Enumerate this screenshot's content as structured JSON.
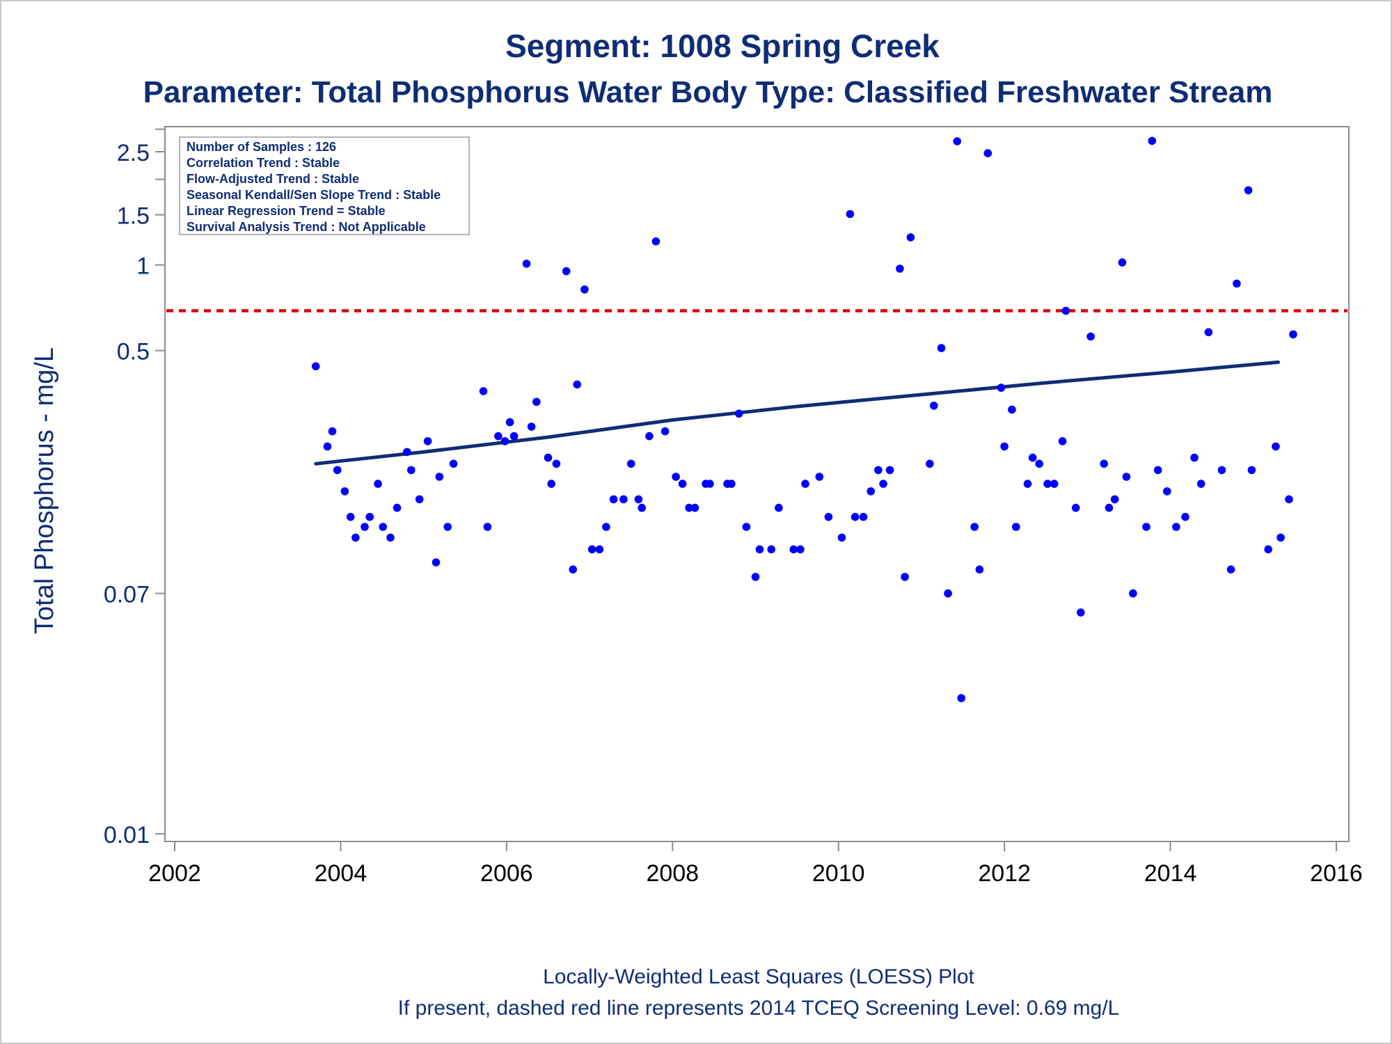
{
  "chart_data": {
    "type": "scatter",
    "title": "Segment: 1008  Spring Creek",
    "subtitle": "Parameter: Total Phosphorus   Water Body Type: Classified Freshwater Stream",
    "xlabel": "",
    "ylabel": "Total Phosphorus - mg/L",
    "yscale": "log",
    "xlim": [
      2002,
      2016
    ],
    "ylim": [
      0.01,
      3
    ],
    "x_ticks": [
      2002,
      2004,
      2006,
      2008,
      2010,
      2012,
      2014,
      2016
    ],
    "y_ticks": [
      {
        "value": 0.01,
        "label": "0.01"
      },
      {
        "value": 0.07,
        "label": "0.07"
      },
      {
        "value": 0.5,
        "label": "0.5"
      },
      {
        "value": 1,
        "label": "1"
      },
      {
        "value": 1.5,
        "label": "1.5"
      },
      {
        "value": 2.5,
        "label": "2.5"
      }
    ],
    "y_minor_ticks": [
      2,
      3
    ],
    "grid": false,
    "legend_box": {
      "position": "top-left",
      "lines": [
        "Number of Samples : 126",
        "Correlation Trend : Stable",
        "Flow-Adjusted Trend : Stable",
        "Seasonal Kendall/Sen Slope Trend : Stable",
        "Linear Regression Trend = Stable",
        "Survival Analysis Trend : Not Applicable"
      ]
    },
    "reference_line": {
      "value": 0.69,
      "style": "dashed",
      "color": "#dd0000"
    },
    "loess_curve": {
      "color": "#0f2d74",
      "points": [
        {
          "x": 2003.7,
          "y": 0.2
        },
        {
          "x": 2005.0,
          "y": 0.22
        },
        {
          "x": 2006.5,
          "y": 0.248
        },
        {
          "x": 2008.0,
          "y": 0.285
        },
        {
          "x": 2009.5,
          "y": 0.318
        },
        {
          "x": 2011.0,
          "y": 0.35
        },
        {
          "x": 2012.5,
          "y": 0.385
        },
        {
          "x": 2014.0,
          "y": 0.42
        },
        {
          "x": 2015.3,
          "y": 0.455
        }
      ]
    },
    "series": [
      {
        "color": "#0000ff",
        "points": [
          {
            "x": 2003.7,
            "y": 0.44
          },
          {
            "x": 2003.84,
            "y": 0.23
          },
          {
            "x": 2003.9,
            "y": 0.26
          },
          {
            "x": 2003.96,
            "y": 0.19
          },
          {
            "x": 2004.05,
            "y": 0.16
          },
          {
            "x": 2004.12,
            "y": 0.13
          },
          {
            "x": 2004.18,
            "y": 0.11
          },
          {
            "x": 2004.29,
            "y": 0.12
          },
          {
            "x": 2004.35,
            "y": 0.13
          },
          {
            "x": 2004.45,
            "y": 0.17
          },
          {
            "x": 2004.51,
            "y": 0.12
          },
          {
            "x": 2004.6,
            "y": 0.11
          },
          {
            "x": 2004.68,
            "y": 0.14
          },
          {
            "x": 2004.8,
            "y": 0.22
          },
          {
            "x": 2004.85,
            "y": 0.19
          },
          {
            "x": 2004.95,
            "y": 0.15
          },
          {
            "x": 2005.05,
            "y": 0.24
          },
          {
            "x": 2005.15,
            "y": 0.09
          },
          {
            "x": 2005.19,
            "y": 0.18
          },
          {
            "x": 2005.29,
            "y": 0.12
          },
          {
            "x": 2005.36,
            "y": 0.2
          },
          {
            "x": 2005.72,
            "y": 0.36
          },
          {
            "x": 2005.77,
            "y": 0.12
          },
          {
            "x": 2005.9,
            "y": 0.25
          },
          {
            "x": 2005.98,
            "y": 0.24
          },
          {
            "x": 2006.04,
            "y": 0.28
          },
          {
            "x": 2006.09,
            "y": 0.25
          },
          {
            "x": 2006.24,
            "y": 1.01
          },
          {
            "x": 2006.3,
            "y": 0.27
          },
          {
            "x": 2006.36,
            "y": 0.33
          },
          {
            "x": 2006.5,
            "y": 0.21
          },
          {
            "x": 2006.54,
            "y": 0.17
          },
          {
            "x": 2006.6,
            "y": 0.2
          },
          {
            "x": 2006.72,
            "y": 0.95
          },
          {
            "x": 2006.8,
            "y": 0.085
          },
          {
            "x": 2006.85,
            "y": 0.38
          },
          {
            "x": 2006.94,
            "y": 0.82
          },
          {
            "x": 2007.03,
            "y": 0.1
          },
          {
            "x": 2007.12,
            "y": 0.1
          },
          {
            "x": 2007.2,
            "y": 0.12
          },
          {
            "x": 2007.29,
            "y": 0.15
          },
          {
            "x": 2007.41,
            "y": 0.15
          },
          {
            "x": 2007.5,
            "y": 0.2
          },
          {
            "x": 2007.59,
            "y": 0.15
          },
          {
            "x": 2007.63,
            "y": 0.14
          },
          {
            "x": 2007.72,
            "y": 0.25
          },
          {
            "x": 2007.8,
            "y": 1.21
          },
          {
            "x": 2007.91,
            "y": 0.26
          },
          {
            "x": 2008.04,
            "y": 0.18
          },
          {
            "x": 2008.12,
            "y": 0.17
          },
          {
            "x": 2008.2,
            "y": 0.14
          },
          {
            "x": 2008.27,
            "y": 0.14
          },
          {
            "x": 2008.4,
            "y": 0.17
          },
          {
            "x": 2008.45,
            "y": 0.17
          },
          {
            "x": 2008.66,
            "y": 0.17
          },
          {
            "x": 2008.71,
            "y": 0.17
          },
          {
            "x": 2008.8,
            "y": 0.3
          },
          {
            "x": 2008.89,
            "y": 0.12
          },
          {
            "x": 2009.0,
            "y": 0.08
          },
          {
            "x": 2009.05,
            "y": 0.1
          },
          {
            "x": 2009.19,
            "y": 0.1
          },
          {
            "x": 2009.28,
            "y": 0.14
          },
          {
            "x": 2009.46,
            "y": 0.1
          },
          {
            "x": 2009.54,
            "y": 0.1
          },
          {
            "x": 2009.6,
            "y": 0.17
          },
          {
            "x": 2009.77,
            "y": 0.18
          },
          {
            "x": 2009.88,
            "y": 0.13
          },
          {
            "x": 2010.04,
            "y": 0.11
          },
          {
            "x": 2010.14,
            "y": 1.51
          },
          {
            "x": 2010.2,
            "y": 0.13
          },
          {
            "x": 2010.3,
            "y": 0.13
          },
          {
            "x": 2010.39,
            "y": 0.16
          },
          {
            "x": 2010.48,
            "y": 0.19
          },
          {
            "x": 2010.54,
            "y": 0.17
          },
          {
            "x": 2010.62,
            "y": 0.19
          },
          {
            "x": 2010.74,
            "y": 0.97
          },
          {
            "x": 2010.8,
            "y": 0.08
          },
          {
            "x": 2010.87,
            "y": 1.25
          },
          {
            "x": 2011.1,
            "y": 0.2
          },
          {
            "x": 2011.15,
            "y": 0.32
          },
          {
            "x": 2011.24,
            "y": 0.51
          },
          {
            "x": 2011.32,
            "y": 0.07
          },
          {
            "x": 2011.43,
            "y": 2.72
          },
          {
            "x": 2011.48,
            "y": 0.03
          },
          {
            "x": 2011.64,
            "y": 0.12
          },
          {
            "x": 2011.7,
            "y": 0.085
          },
          {
            "x": 2011.8,
            "y": 2.47
          },
          {
            "x": 2011.96,
            "y": 0.37
          },
          {
            "x": 2012.0,
            "y": 0.23
          },
          {
            "x": 2012.09,
            "y": 0.31
          },
          {
            "x": 2012.14,
            "y": 0.12
          },
          {
            "x": 2012.28,
            "y": 0.17
          },
          {
            "x": 2012.34,
            "y": 0.21
          },
          {
            "x": 2012.42,
            "y": 0.2
          },
          {
            "x": 2012.52,
            "y": 0.17
          },
          {
            "x": 2012.6,
            "y": 0.17
          },
          {
            "x": 2012.7,
            "y": 0.24
          },
          {
            "x": 2012.74,
            "y": 0.69
          },
          {
            "x": 2012.86,
            "y": 0.14
          },
          {
            "x": 2012.92,
            "y": 0.06
          },
          {
            "x": 2013.04,
            "y": 0.56
          },
          {
            "x": 2013.2,
            "y": 0.2
          },
          {
            "x": 2013.26,
            "y": 0.14
          },
          {
            "x": 2013.33,
            "y": 0.15
          },
          {
            "x": 2013.42,
            "y": 1.02
          },
          {
            "x": 2013.47,
            "y": 0.18
          },
          {
            "x": 2013.55,
            "y": 0.07
          },
          {
            "x": 2013.71,
            "y": 0.12
          },
          {
            "x": 2013.78,
            "y": 2.73
          },
          {
            "x": 2013.85,
            "y": 0.19
          },
          {
            "x": 2013.96,
            "y": 0.16
          },
          {
            "x": 2014.07,
            "y": 0.12
          },
          {
            "x": 2014.18,
            "y": 0.13
          },
          {
            "x": 2014.29,
            "y": 0.21
          },
          {
            "x": 2014.37,
            "y": 0.17
          },
          {
            "x": 2014.46,
            "y": 0.58
          },
          {
            "x": 2014.62,
            "y": 0.19
          },
          {
            "x": 2014.73,
            "y": 0.085
          },
          {
            "x": 2014.8,
            "y": 0.86
          },
          {
            "x": 2014.94,
            "y": 1.83
          },
          {
            "x": 2014.98,
            "y": 0.19
          },
          {
            "x": 2015.18,
            "y": 0.1
          },
          {
            "x": 2015.27,
            "y": 0.23
          },
          {
            "x": 2015.33,
            "y": 0.11
          },
          {
            "x": 2015.43,
            "y": 0.15
          },
          {
            "x": 2015.48,
            "y": 0.57
          }
        ]
      }
    ]
  },
  "footer": {
    "line1": "Locally-Weighted Least Squares (LOESS) Plot",
    "line2": "If present, dashed red line represents 2014 TCEQ Screening Level: 0.69 mg/L"
  }
}
